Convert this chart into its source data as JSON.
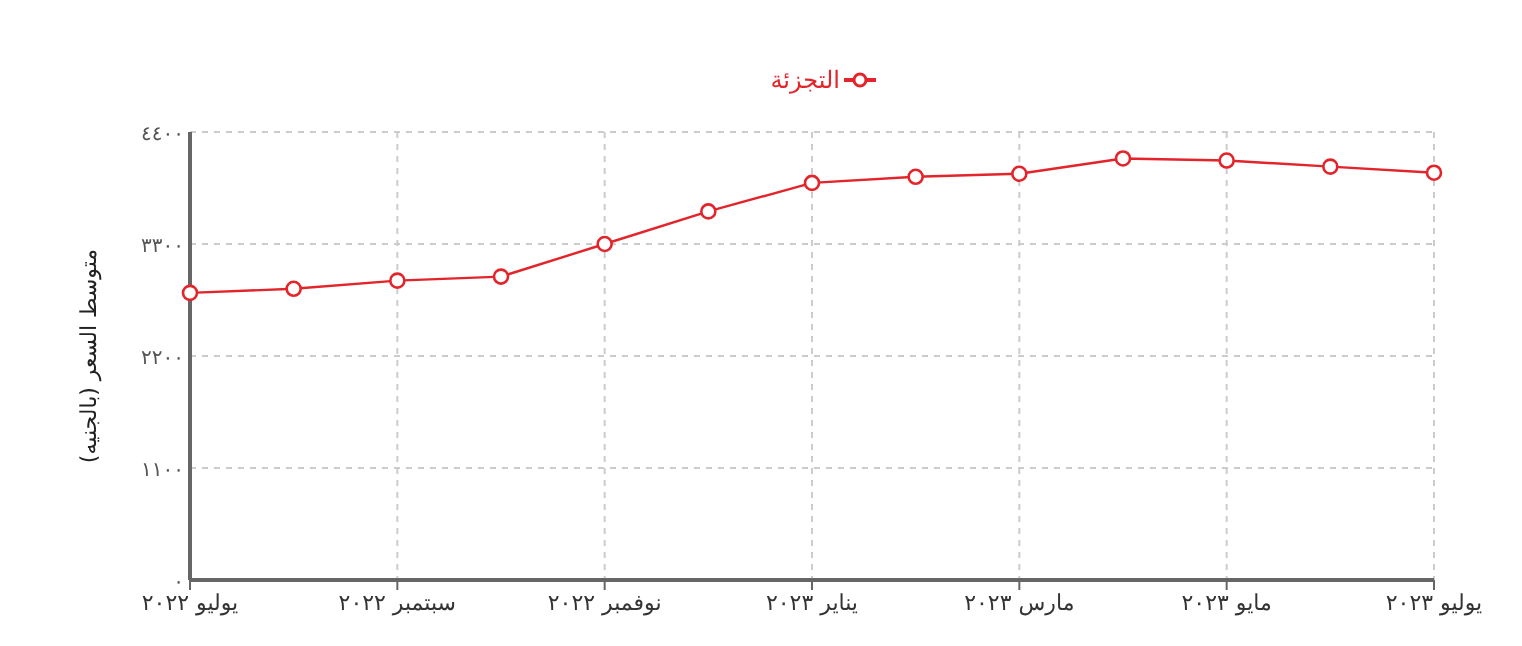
{
  "chart_data": {
    "type": "line",
    "ylabel": "متوسط السعر (بالجنيه)",
    "categories": [
      "يوليو ٢٠٢٢",
      null,
      "سبتمبر ٢٠٢٢",
      null,
      "نوفمبر ٢٠٢٢",
      null,
      "يناير ٢٠٢٣",
      null,
      "مارس ٢٠٢٣",
      null,
      "مايو ٢٠٢٣",
      null,
      "يوليو ٢٠٢٣"
    ],
    "series": [
      {
        "name": "التجزئة",
        "color": "#e3242b",
        "values": [
          2820,
          2860,
          2940,
          2980,
          3300,
          3620,
          3900,
          3960,
          3990,
          4140,
          4120,
          4060,
          4000
        ]
      }
    ],
    "ylim": [
      0,
      4400
    ],
    "yticks": [
      {
        "value": 0,
        "label": "٠"
      },
      {
        "value": 1100,
        "label": "١١٠٠"
      },
      {
        "value": 2200,
        "label": "٢٢٠٠"
      },
      {
        "value": 3300,
        "label": "٣٣٠٠"
      },
      {
        "value": 4400,
        "label": "٤٤٠٠"
      }
    ],
    "grid": true,
    "legend": "top",
    "marker": "circle",
    "line_style": "solid"
  }
}
